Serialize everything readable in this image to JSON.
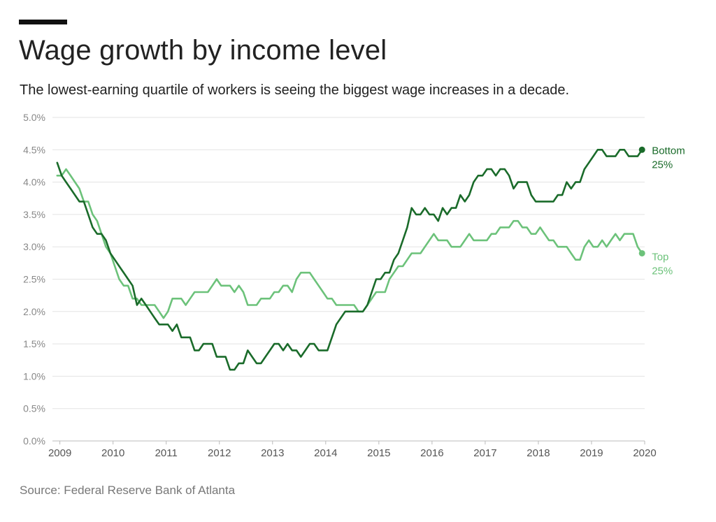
{
  "header": {
    "title": "Wage growth by income level",
    "subtitle": "The lowest-earning quartile of workers is seeing the biggest wage increases in a decade."
  },
  "footer": {
    "source": "Source: Federal Reserve Bank of Atlanta"
  },
  "chart_data": {
    "type": "line",
    "title": "Wage growth by income level",
    "xlabel": "",
    "ylabel": "",
    "ylim": [
      0,
      5
    ],
    "xlim": [
      2008.86,
      2020.0
    ],
    "y_ticks": [
      0,
      0.5,
      1,
      1.5,
      2,
      2.5,
      3,
      3.5,
      4,
      4.5,
      5
    ],
    "y_tick_labels": [
      "0.0%",
      "0.5%",
      "1.0%",
      "1.5%",
      "2.0%",
      "2.5%",
      "3.0%",
      "3.5%",
      "4.0%",
      "4.5%",
      "5.0%"
    ],
    "x_ticks": [
      2009,
      2010,
      2011,
      2012,
      2013,
      2014,
      2015,
      2016,
      2017,
      2018,
      2019,
      2020
    ],
    "x_tick_labels": [
      "2009",
      "2010",
      "2011",
      "2012",
      "2013",
      "2014",
      "2015",
      "2016",
      "2017",
      "2018",
      "2019",
      "2020"
    ],
    "grid": true,
    "series": [
      {
        "name": "Bottom 25%",
        "label_lines": [
          "Bottom",
          "25%"
        ],
        "color": "#1a6b2a",
        "x_start": 2008.95,
        "x_step": 0.0833333,
        "values": [
          4.3,
          4.1,
          4.0,
          3.9,
          3.8,
          3.7,
          3.7,
          3.5,
          3.3,
          3.2,
          3.2,
          3.1,
          2.9,
          2.8,
          2.7,
          2.6,
          2.5,
          2.4,
          2.1,
          2.2,
          2.1,
          2.0,
          1.9,
          1.8,
          1.8,
          1.8,
          1.7,
          1.8,
          1.6,
          1.6,
          1.6,
          1.4,
          1.4,
          1.5,
          1.5,
          1.5,
          1.3,
          1.3,
          1.3,
          1.1,
          1.1,
          1.2,
          1.2,
          1.4,
          1.3,
          1.2,
          1.2,
          1.3,
          1.4,
          1.5,
          1.5,
          1.4,
          1.5,
          1.4,
          1.4,
          1.3,
          1.4,
          1.5,
          1.5,
          1.4,
          1.4,
          1.4,
          1.6,
          1.8,
          1.9,
          2.0,
          2.0,
          2.0,
          2.0,
          2.0,
          2.1,
          2.3,
          2.5,
          2.5,
          2.6,
          2.6,
          2.8,
          2.9,
          3.1,
          3.3,
          3.6,
          3.5,
          3.5,
          3.6,
          3.5,
          3.5,
          3.4,
          3.6,
          3.5,
          3.6,
          3.6,
          3.8,
          3.7,
          3.8,
          4.0,
          4.1,
          4.1,
          4.2,
          4.2,
          4.1,
          4.2,
          4.2,
          4.1,
          3.9,
          4.0,
          4.0,
          4.0,
          3.8,
          3.7,
          3.7,
          3.7,
          3.7,
          3.7,
          3.8,
          3.8,
          4.0,
          3.9,
          4.0,
          4.0,
          4.2,
          4.3,
          4.4,
          4.5,
          4.5,
          4.4,
          4.4,
          4.4,
          4.5,
          4.5,
          4.4,
          4.4,
          4.4,
          4.5
        ]
      },
      {
        "name": "Top 25%",
        "label_lines": [
          "Top",
          "25%"
        ],
        "color": "#6cc27a",
        "x_start": 2008.95,
        "x_step": 0.0833333,
        "values": [
          4.1,
          4.1,
          4.2,
          4.1,
          4.0,
          3.9,
          3.7,
          3.7,
          3.5,
          3.4,
          3.2,
          3.0,
          2.9,
          2.7,
          2.5,
          2.4,
          2.4,
          2.2,
          2.2,
          2.1,
          2.1,
          2.1,
          2.1,
          2.0,
          1.9,
          2.0,
          2.2,
          2.2,
          2.2,
          2.1,
          2.2,
          2.3,
          2.3,
          2.3,
          2.3,
          2.4,
          2.5,
          2.4,
          2.4,
          2.4,
          2.3,
          2.4,
          2.3,
          2.1,
          2.1,
          2.1,
          2.2,
          2.2,
          2.2,
          2.3,
          2.3,
          2.4,
          2.4,
          2.3,
          2.5,
          2.6,
          2.6,
          2.6,
          2.5,
          2.4,
          2.3,
          2.2,
          2.2,
          2.1,
          2.1,
          2.1,
          2.1,
          2.1,
          2.0,
          2.0,
          2.1,
          2.2,
          2.3,
          2.3,
          2.3,
          2.5,
          2.6,
          2.7,
          2.7,
          2.8,
          2.9,
          2.9,
          2.9,
          3.0,
          3.1,
          3.2,
          3.1,
          3.1,
          3.1,
          3.0,
          3.0,
          3.0,
          3.1,
          3.2,
          3.1,
          3.1,
          3.1,
          3.1,
          3.2,
          3.2,
          3.3,
          3.3,
          3.3,
          3.4,
          3.4,
          3.3,
          3.3,
          3.2,
          3.2,
          3.3,
          3.2,
          3.1,
          3.1,
          3.0,
          3.0,
          3.0,
          2.9,
          2.8,
          2.8,
          3.0,
          3.1,
          3.0,
          3.0,
          3.1,
          3.0,
          3.1,
          3.2,
          3.1,
          3.2,
          3.2,
          3.2,
          3.0,
          2.9
        ]
      }
    ]
  }
}
